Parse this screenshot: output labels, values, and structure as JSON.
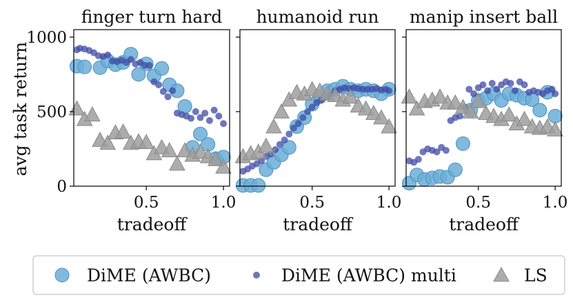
{
  "figure": {
    "ylabel": "avg task return",
    "legend": {
      "placement": "bottom",
      "entries": [
        {
          "label": "DiME (AWBC)",
          "marker": "circle-large",
          "color": "#6baed6"
        },
        {
          "label": "DiME (AWBC) multi",
          "marker": "circle-small",
          "color": "#3f4aa5"
        },
        {
          "label": "LS",
          "marker": "triangle",
          "color": "#9e9e9e"
        }
      ]
    }
  },
  "chart_data": [
    {
      "type": "scatter",
      "title": "finger turn hard",
      "xlabel": "tradeoff",
      "ylabel": "avg task return",
      "xlim": [
        0.03,
        1.04
      ],
      "ylim": [
        0,
        1050
      ],
      "xticks": [
        "0.5",
        "1.0"
      ],
      "yticks": [
        "0",
        "500",
        "1000"
      ],
      "grid": false,
      "series": [
        {
          "name": "DiME (AWBC)",
          "x": [
            0.05,
            0.1,
            0.2,
            0.25,
            0.3,
            0.35,
            0.4,
            0.45,
            0.5,
            0.55,
            0.6,
            0.65,
            0.7,
            0.75,
            0.8,
            0.85,
            0.9,
            0.95,
            1.0
          ],
          "y": [
            805,
            800,
            795,
            840,
            815,
            830,
            885,
            750,
            820,
            740,
            790,
            680,
            640,
            535,
            260,
            350,
            280,
            185,
            195
          ]
        },
        {
          "name": "DiME (AWBC) multi",
          "x": [
            0.05,
            0.07,
            0.1,
            0.13,
            0.16,
            0.19,
            0.22,
            0.25,
            0.28,
            0.31,
            0.34,
            0.37,
            0.4,
            0.43,
            0.46,
            0.49,
            0.52,
            0.55,
            0.58,
            0.61,
            0.64,
            0.67,
            0.7,
            0.73,
            0.76,
            0.79,
            0.82,
            0.85,
            0.88,
            0.91,
            0.94,
            0.97,
            1.0
          ],
          "y": [
            915,
            925,
            920,
            910,
            895,
            875,
            870,
            880,
            840,
            835,
            845,
            830,
            850,
            820,
            830,
            810,
            810,
            700,
            680,
            635,
            600,
            640,
            490,
            480,
            470,
            455,
            500,
            460,
            490,
            440,
            510,
            470,
            420
          ]
        },
        {
          "name": "LS",
          "x": [
            0.05,
            0.1,
            0.15,
            0.2,
            0.25,
            0.3,
            0.35,
            0.4,
            0.45,
            0.5,
            0.55,
            0.6,
            0.65,
            0.7,
            0.75,
            0.8,
            0.85,
            0.9,
            0.95,
            1.0
          ],
          "y": [
            520,
            450,
            480,
            310,
            290,
            360,
            365,
            290,
            300,
            295,
            220,
            260,
            240,
            150,
            240,
            210,
            230,
            200,
            180,
            130
          ]
        }
      ]
    },
    {
      "type": "scatter",
      "title": "humanoid run",
      "xlabel": "tradeoff",
      "ylabel": "",
      "xlim": [
        0.03,
        1.04
      ],
      "ylim": [
        0,
        1050
      ],
      "xticks": [
        "0.5",
        "1.0"
      ],
      "yticks": [
        "0",
        "500",
        "1000"
      ],
      "grid": false,
      "series": [
        {
          "name": "DiME (AWBC)",
          "x": [
            0.05,
            0.1,
            0.15,
            0.2,
            0.25,
            0.3,
            0.35,
            0.4,
            0.45,
            0.5,
            0.55,
            0.6,
            0.65,
            0.7,
            0.75,
            0.8,
            0.85,
            0.9,
            0.95,
            1.0
          ],
          "y": [
            5,
            5,
            5,
            110,
            160,
            210,
            260,
            400,
            460,
            550,
            600,
            640,
            650,
            670,
            650,
            640,
            650,
            640,
            620,
            650
          ]
        },
        {
          "name": "DiME (AWBC) multi",
          "x": [
            0.05,
            0.08,
            0.11,
            0.14,
            0.17,
            0.2,
            0.23,
            0.26,
            0.29,
            0.32,
            0.35,
            0.38,
            0.41,
            0.44,
            0.47,
            0.5,
            0.53,
            0.56,
            0.59,
            0.62,
            0.65,
            0.68,
            0.71,
            0.74,
            0.77,
            0.8,
            0.83,
            0.86,
            0.89,
            0.92,
            0.95,
            0.98,
            1.0
          ],
          "y": [
            100,
            115,
            135,
            150,
            170,
            200,
            215,
            245,
            280,
            310,
            350,
            390,
            420,
            460,
            500,
            530,
            560,
            580,
            600,
            610,
            640,
            650,
            660,
            655,
            660,
            655,
            650,
            650,
            650,
            655,
            645,
            650,
            640
          ]
        },
        {
          "name": "LS",
          "x": [
            0.05,
            0.1,
            0.15,
            0.2,
            0.25,
            0.3,
            0.35,
            0.4,
            0.45,
            0.5,
            0.55,
            0.6,
            0.65,
            0.7,
            0.75,
            0.8,
            0.85,
            0.9,
            0.95,
            1.0
          ],
          "y": [
            200,
            220,
            230,
            270,
            400,
            500,
            580,
            630,
            620,
            650,
            640,
            620,
            610,
            580,
            600,
            540,
            520,
            490,
            460,
            400
          ]
        }
      ]
    },
    {
      "type": "scatter",
      "title": "manip insert ball",
      "xlabel": "tradeoff",
      "ylabel": "",
      "xlim": [
        0.03,
        1.04
      ],
      "ylim": [
        0,
        1050
      ],
      "xticks": [
        "0.5",
        "1.0"
      ],
      "yticks": [
        "0",
        "500",
        "1000"
      ],
      "grid": false,
      "series": [
        {
          "name": "DiME (AWBC)",
          "x": [
            0.05,
            0.1,
            0.15,
            0.2,
            0.25,
            0.3,
            0.35,
            0.4,
            0.45,
            0.5,
            0.55,
            0.6,
            0.65,
            0.7,
            0.75,
            0.8,
            0.85,
            0.9,
            0.95,
            1.0
          ],
          "y": [
            20,
            75,
            45,
            55,
            65,
            60,
            110,
            285,
            510,
            575,
            590,
            620,
            575,
            620,
            610,
            590,
            580,
            510,
            630,
            470
          ]
        },
        {
          "name": "DiME (AWBC) multi",
          "x": [
            0.05,
            0.08,
            0.11,
            0.14,
            0.17,
            0.2,
            0.23,
            0.26,
            0.29,
            0.32,
            0.35,
            0.38,
            0.41,
            0.44,
            0.47,
            0.5,
            0.53,
            0.56,
            0.59,
            0.62,
            0.65,
            0.68,
            0.71,
            0.74,
            0.77,
            0.8,
            0.83,
            0.86,
            0.89,
            0.92,
            0.95,
            0.98,
            1.0
          ],
          "y": [
            170,
            160,
            180,
            230,
            250,
            240,
            230,
            260,
            240,
            440,
            460,
            470,
            530,
            650,
            620,
            660,
            680,
            640,
            690,
            650,
            680,
            700,
            690,
            640,
            700,
            680,
            630,
            640,
            630,
            620,
            640,
            650,
            620
          ]
        },
        {
          "name": "LS",
          "x": [
            0.05,
            0.1,
            0.15,
            0.2,
            0.25,
            0.3,
            0.35,
            0.4,
            0.45,
            0.5,
            0.55,
            0.6,
            0.65,
            0.7,
            0.75,
            0.8,
            0.85,
            0.9,
            0.95,
            1.0
          ],
          "y": [
            600,
            520,
            570,
            580,
            600,
            560,
            560,
            530,
            500,
            570,
            490,
            470,
            450,
            480,
            420,
            450,
            400,
            390,
            400,
            380
          ]
        }
      ]
    }
  ]
}
